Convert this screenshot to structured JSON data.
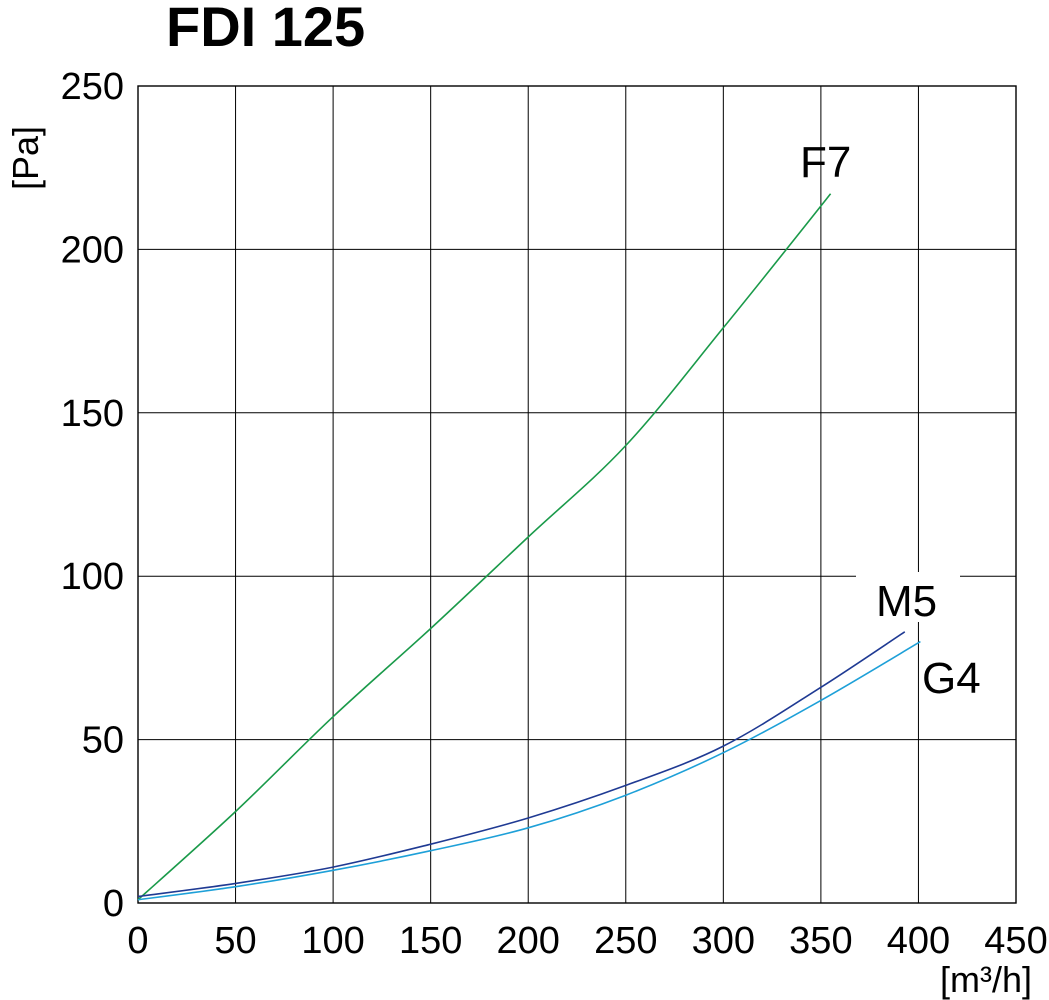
{
  "chart_data": {
    "type": "line",
    "title": "FDI 125",
    "xlabel": "[m³/h]",
    "ylabel": "[Pa]",
    "xlim": [
      0,
      450
    ],
    "ylim": [
      0,
      250
    ],
    "xticks": [
      0,
      50,
      100,
      150,
      200,
      250,
      300,
      350,
      400,
      450
    ],
    "yticks": [
      0,
      50,
      100,
      150,
      200,
      250
    ],
    "grid": true,
    "series": [
      {
        "name": "F7",
        "color": "#1a9a4a",
        "x": [
          0,
          50,
          100,
          150,
          200,
          250,
          300,
          355
        ],
        "y": [
          1,
          28,
          57,
          84,
          112,
          140,
          176,
          217
        ]
      },
      {
        "name": "M5",
        "color": "#1f3a93",
        "x": [
          0,
          50,
          100,
          150,
          200,
          250,
          300,
          350,
          393
        ],
        "y": [
          2,
          6,
          11,
          18,
          26,
          36,
          48,
          66,
          83
        ]
      },
      {
        "name": "G4",
        "color": "#1ea0d8",
        "x": [
          0,
          50,
          100,
          150,
          200,
          250,
          300,
          350,
          401
        ],
        "y": [
          1,
          5,
          10,
          16,
          23,
          33,
          46,
          62,
          80
        ]
      }
    ]
  }
}
